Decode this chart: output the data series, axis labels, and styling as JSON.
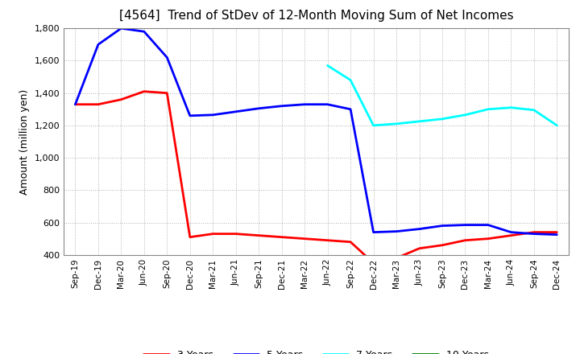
{
  "title": "[4564]  Trend of StDev of 12-Month Moving Sum of Net Incomes",
  "ylabel": "Amount (million yen)",
  "x_labels": [
    "Sep-19",
    "Dec-19",
    "Mar-20",
    "Jun-20",
    "Sep-20",
    "Dec-20",
    "Mar-21",
    "Jun-21",
    "Sep-21",
    "Dec-21",
    "Mar-22",
    "Jun-22",
    "Sep-22",
    "Dec-22",
    "Mar-23",
    "Jun-23",
    "Sep-23",
    "Dec-23",
    "Mar-24",
    "Jun-24",
    "Sep-24",
    "Dec-24"
  ],
  "series": {
    "3 Years": {
      "color": "#ff0000",
      "data": [
        1330,
        1330,
        1360,
        1410,
        1400,
        510,
        530,
        530,
        520,
        510,
        500,
        490,
        480,
        350,
        380,
        440,
        460,
        490,
        500,
        520,
        540,
        540
      ]
    },
    "5 Years": {
      "color": "#0000ff",
      "data": [
        1330,
        1700,
        1800,
        1780,
        1620,
        1260,
        1265,
        1285,
        1305,
        1320,
        1330,
        1330,
        1300,
        540,
        545,
        560,
        580,
        585,
        585,
        540,
        530,
        525
      ]
    },
    "7 Years": {
      "color": "#00ffff",
      "data": [
        null,
        null,
        null,
        null,
        null,
        null,
        null,
        null,
        null,
        null,
        null,
        1570,
        1480,
        1200,
        1210,
        1225,
        1240,
        1265,
        1300,
        1310,
        1295,
        1200
      ]
    },
    "10 Years": {
      "color": "#008000",
      "data": [
        null,
        null,
        null,
        null,
        null,
        null,
        null,
        null,
        null,
        null,
        null,
        null,
        null,
        null,
        null,
        null,
        null,
        null,
        null,
        null,
        null,
        null
      ]
    }
  },
  "ylim": [
    400,
    1800
  ],
  "yticks": [
    400,
    600,
    800,
    1000,
    1200,
    1400,
    1600,
    1800
  ],
  "background_color": "#ffffff",
  "grid_color": "#b0b0b0",
  "title_fontsize": 11,
  "legend_fontsize": 9,
  "linewidth": 2.0
}
